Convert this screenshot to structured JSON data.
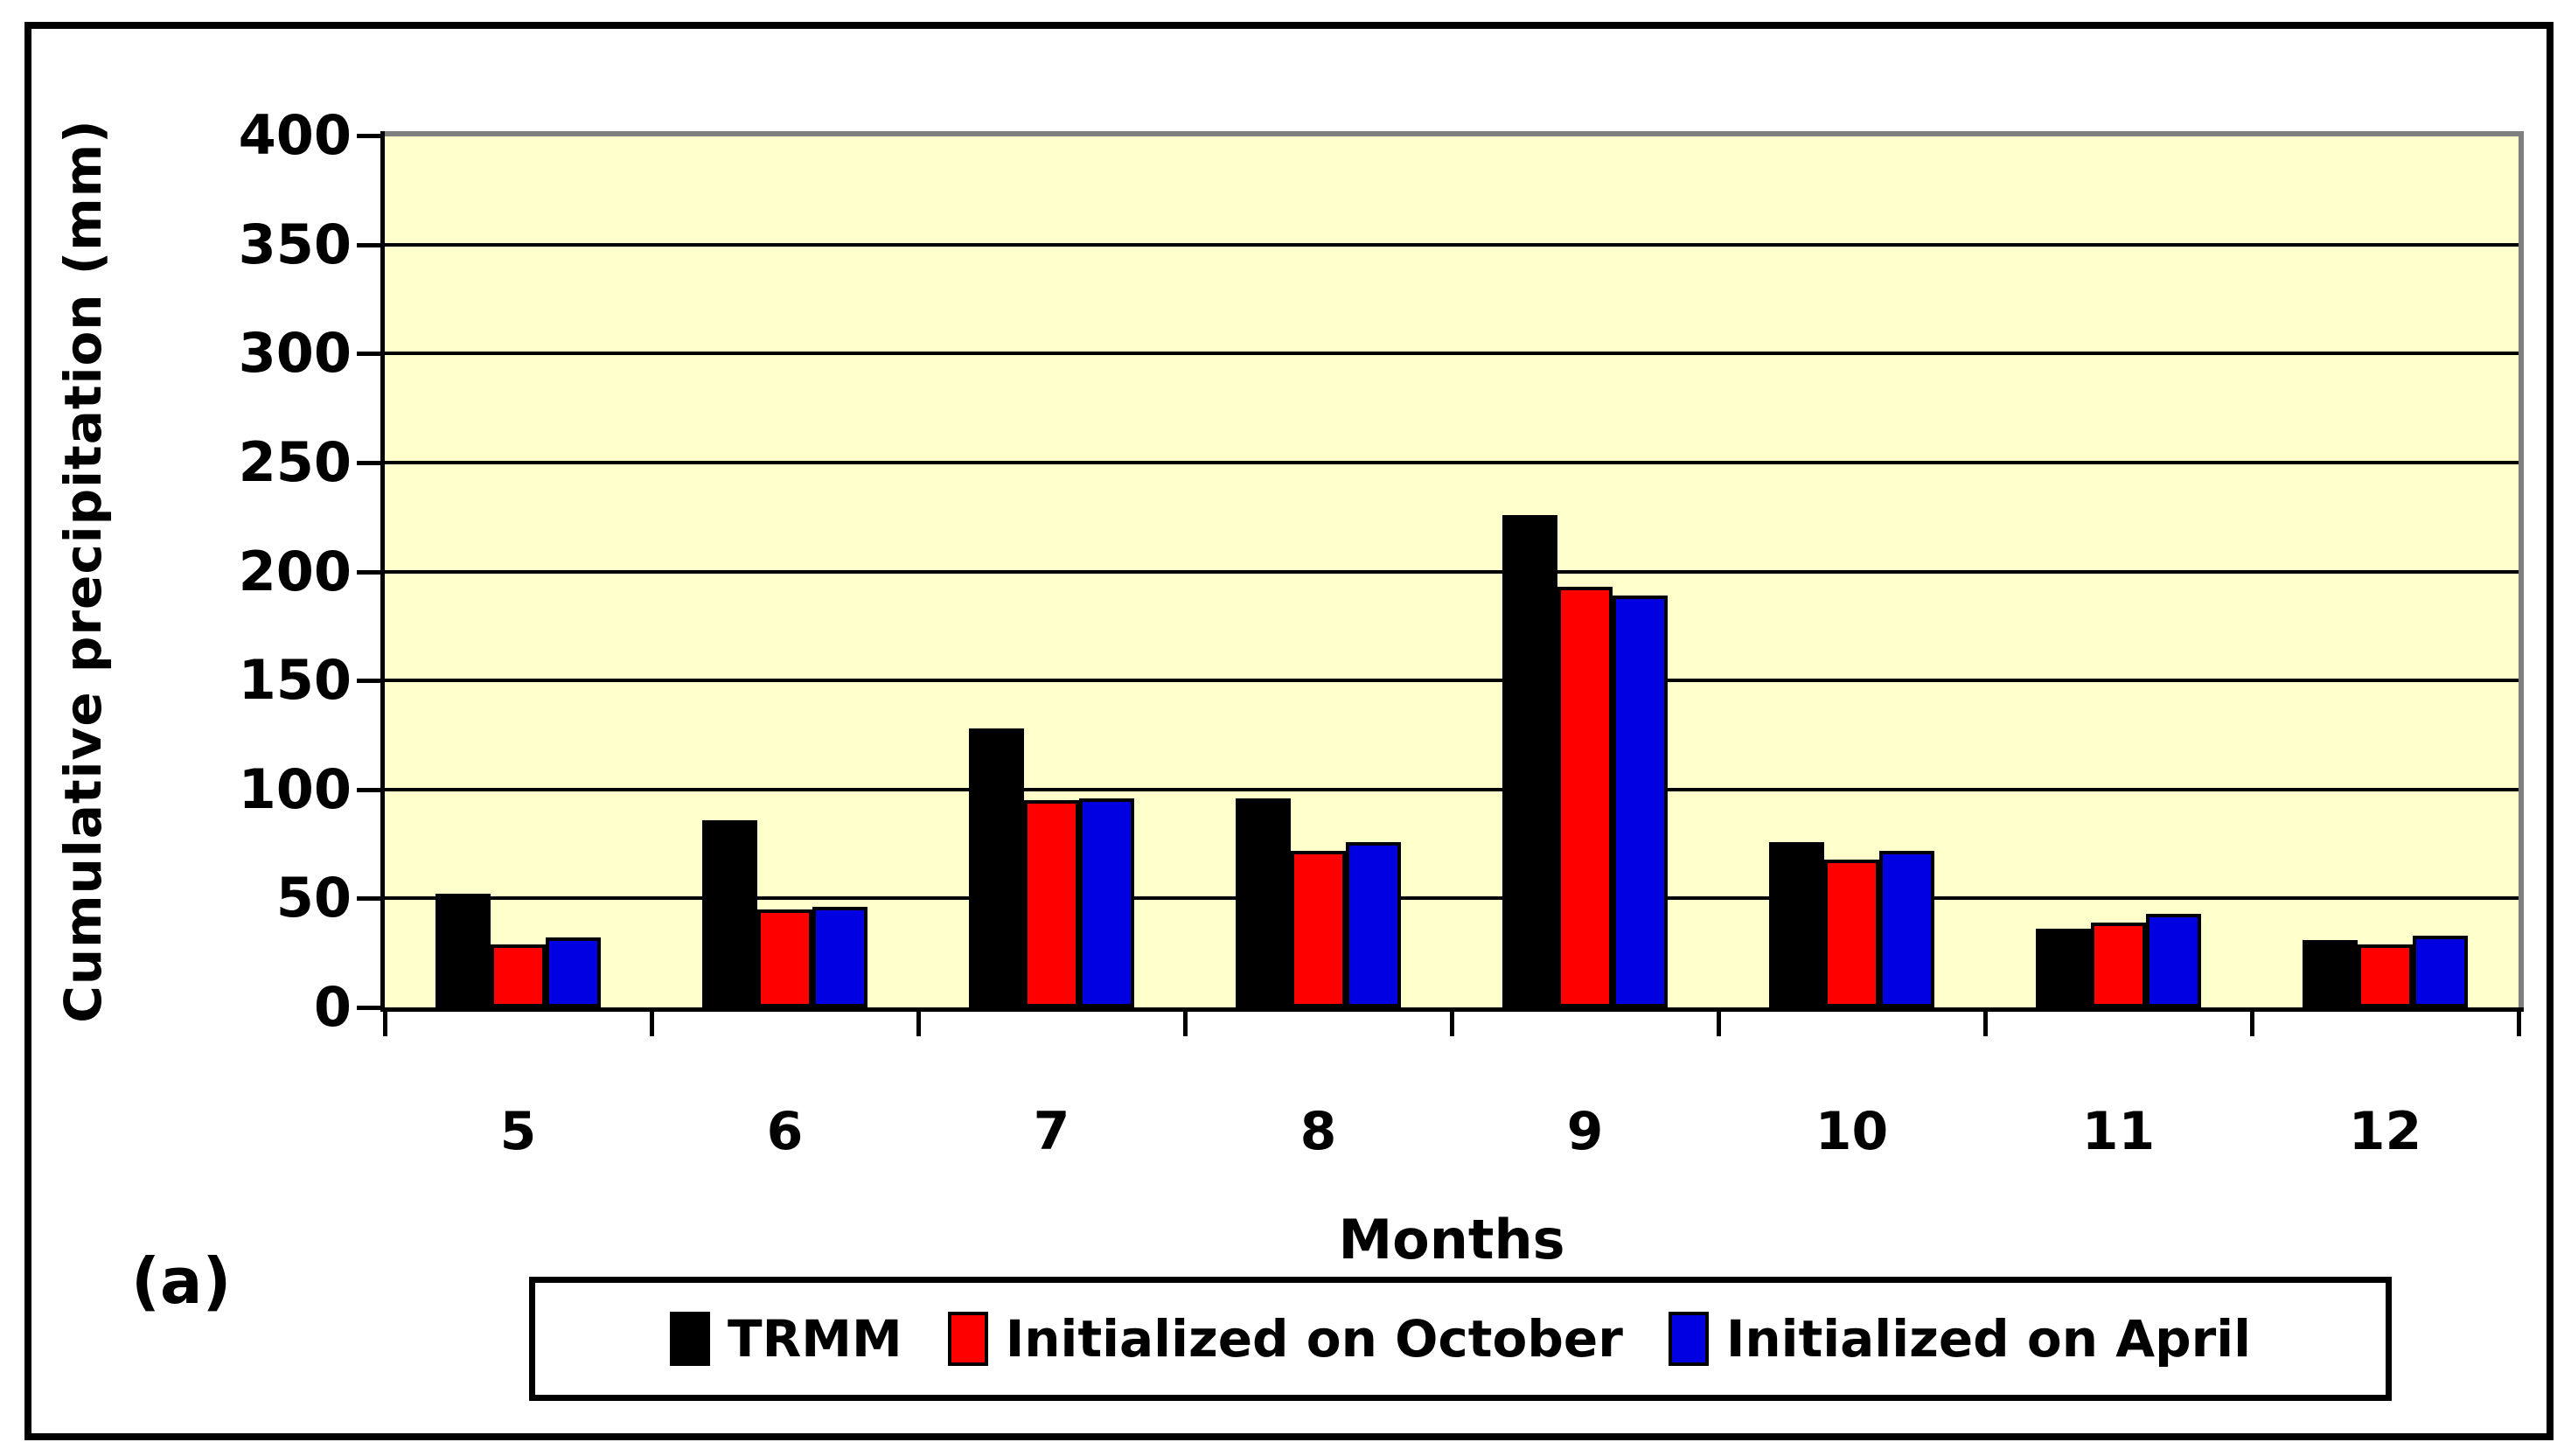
{
  "panel_label": "(a)",
  "y_axis": {
    "title": "Cumulative precipitation (mm)",
    "tick_labels": [
      "400",
      "350",
      "300",
      "250",
      "200",
      "150",
      "100",
      "50",
      "0"
    ]
  },
  "x_axis": {
    "title": "Months",
    "tick_labels": [
      "5",
      "6",
      "7",
      "8",
      "9",
      "10",
      "11",
      "12"
    ]
  },
  "colors": {
    "plot_background": "#FFFFCC",
    "gridline": "#000000",
    "plot_outer_border": "#7f7f7f",
    "axis": "#000000",
    "trmm": "#000000",
    "initialized_october": "#FE0000",
    "initialized_april": "#0000E0"
  },
  "chart_data": {
    "type": "bar",
    "title": "",
    "categories": [
      "5",
      "6",
      "7",
      "8",
      "9",
      "10",
      "11",
      "12"
    ],
    "series": [
      {
        "name": "TRMM",
        "color": "#000000",
        "values": [
          52,
          86,
          128,
          96,
          226,
          76,
          36,
          31
        ]
      },
      {
        "name": "Initialized on October",
        "color": "#FE0000",
        "values": [
          29,
          45,
          95,
          72,
          193,
          68,
          39,
          29
        ]
      },
      {
        "name": "Initialized on April",
        "color": "#0000E0",
        "values": [
          32,
          46,
          96,
          76,
          189,
          72,
          43,
          33
        ]
      }
    ],
    "xlabel": "Months",
    "ylabel": "Cumulative precipitation (mm)",
    "ylim": [
      0,
      400
    ],
    "ytick_step": 50,
    "grid": "horizontal",
    "legend_position": "bottom"
  }
}
